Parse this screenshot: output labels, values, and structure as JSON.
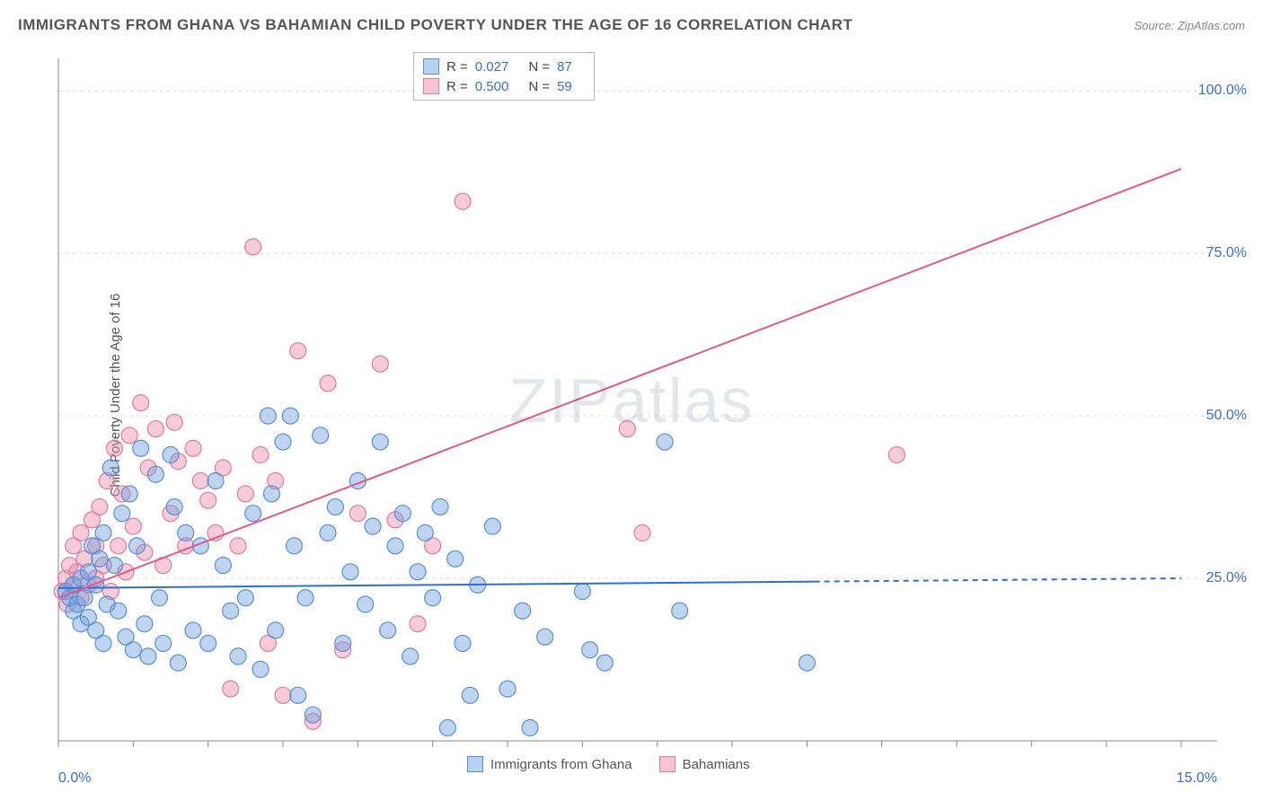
{
  "title": "IMMIGRANTS FROM GHANA VS BAHAMIAN CHILD POVERTY UNDER THE AGE OF 16 CORRELATION CHART",
  "source": "Source: ZipAtlas.com",
  "ylabel": "Child Poverty Under the Age of 16",
  "watermark": "ZIPatlas",
  "chart": {
    "type": "scatter",
    "xlim": [
      0,
      15
    ],
    "ylim": [
      0,
      105
    ],
    "xticks": [
      0,
      1,
      2,
      3,
      4,
      5,
      6,
      7,
      8,
      9,
      10,
      11,
      12,
      13,
      14,
      15
    ],
    "yticks": [
      25,
      50,
      75,
      100
    ],
    "xtick_labels": {
      "0": "0.0%",
      "15": "15.0%"
    },
    "ytick_labels": {
      "25": "25.0%",
      "50": "50.0%",
      "75": "75.0%",
      "100": "100.0%"
    },
    "grid_color": "#dddddd",
    "axis_color": "#888888",
    "background_color": "#ffffff",
    "label_color": "#3b6fc4",
    "marker_radius": 9,
    "marker_opacity": 0.55,
    "line_width": 2,
    "trend_dash_extension": true
  },
  "series": {
    "ghana": {
      "label": "Immigrants from Ghana",
      "color_fill": "rgba(110,160,225,0.45)",
      "color_stroke": "#5a8fd6",
      "swatch_fill": "#b8d1f0",
      "swatch_stroke": "#5a8fd6",
      "R": "0.027",
      "N": "87",
      "trend": {
        "x1": 0,
        "y1": 23.5,
        "x2": 10.1,
        "y2": 24.5,
        "dash_x2": 15,
        "dash_y2": 25.0,
        "stroke": "#2f6fd0"
      },
      "points": [
        [
          0.1,
          23
        ],
        [
          0.15,
          22
        ],
        [
          0.2,
          24
        ],
        [
          0.2,
          20
        ],
        [
          0.25,
          21
        ],
        [
          0.3,
          25
        ],
        [
          0.3,
          18
        ],
        [
          0.35,
          22
        ],
        [
          0.4,
          26
        ],
        [
          0.4,
          19
        ],
        [
          0.45,
          30
        ],
        [
          0.5,
          17
        ],
        [
          0.5,
          24
        ],
        [
          0.55,
          28
        ],
        [
          0.6,
          32
        ],
        [
          0.6,
          15
        ],
        [
          0.65,
          21
        ],
        [
          0.7,
          42
        ],
        [
          0.75,
          27
        ],
        [
          0.8,
          20
        ],
        [
          0.85,
          35
        ],
        [
          0.9,
          16
        ],
        [
          0.95,
          38
        ],
        [
          1.0,
          14
        ],
        [
          1.05,
          30
        ],
        [
          1.1,
          45
        ],
        [
          1.15,
          18
        ],
        [
          1.2,
          13
        ],
        [
          1.3,
          41
        ],
        [
          1.35,
          22
        ],
        [
          1.4,
          15
        ],
        [
          1.5,
          44
        ],
        [
          1.55,
          36
        ],
        [
          1.6,
          12
        ],
        [
          1.7,
          32
        ],
        [
          1.8,
          17
        ],
        [
          1.9,
          30
        ],
        [
          2.0,
          15
        ],
        [
          2.1,
          40
        ],
        [
          2.2,
          27
        ],
        [
          2.3,
          20
        ],
        [
          2.4,
          13
        ],
        [
          2.5,
          22
        ],
        [
          2.6,
          35
        ],
        [
          2.7,
          11
        ],
        [
          2.8,
          50
        ],
        [
          2.85,
          38
        ],
        [
          2.9,
          17
        ],
        [
          3.0,
          46
        ],
        [
          3.1,
          50
        ],
        [
          3.15,
          30
        ],
        [
          3.2,
          7
        ],
        [
          3.3,
          22
        ],
        [
          3.4,
          4
        ],
        [
          3.5,
          47
        ],
        [
          3.6,
          32
        ],
        [
          3.7,
          36
        ],
        [
          3.8,
          15
        ],
        [
          3.9,
          26
        ],
        [
          4.0,
          40
        ],
        [
          4.1,
          21
        ],
        [
          4.2,
          33
        ],
        [
          4.3,
          46
        ],
        [
          4.4,
          17
        ],
        [
          4.5,
          30
        ],
        [
          4.6,
          35
        ],
        [
          4.7,
          13
        ],
        [
          4.8,
          26
        ],
        [
          4.9,
          32
        ],
        [
          5.0,
          22
        ],
        [
          5.1,
          36
        ],
        [
          5.2,
          2
        ],
        [
          5.3,
          28
        ],
        [
          5.4,
          15
        ],
        [
          5.5,
          7
        ],
        [
          5.6,
          24
        ],
        [
          5.8,
          33
        ],
        [
          6.0,
          8
        ],
        [
          6.2,
          20
        ],
        [
          6.3,
          2
        ],
        [
          6.5,
          16
        ],
        [
          7.0,
          23
        ],
        [
          7.1,
          14
        ],
        [
          7.3,
          12
        ],
        [
          8.1,
          46
        ],
        [
          8.3,
          20
        ],
        [
          10.0,
          12
        ]
      ]
    },
    "bahamians": {
      "label": "Bahamians",
      "color_fill": "rgba(240,140,170,0.45)",
      "color_stroke": "#df7ba0",
      "swatch_fill": "#f4c4d4",
      "swatch_stroke": "#df7ba0",
      "R": "0.500",
      "N": "59",
      "trend": {
        "x1": 0,
        "y1": 22,
        "x2": 15,
        "y2": 88,
        "stroke": "#e05a8a"
      },
      "points": [
        [
          0.05,
          23
        ],
        [
          0.1,
          25
        ],
        [
          0.12,
          21
        ],
        [
          0.15,
          27
        ],
        [
          0.2,
          24
        ],
        [
          0.2,
          30
        ],
        [
          0.25,
          26
        ],
        [
          0.3,
          22
        ],
        [
          0.3,
          32
        ],
        [
          0.35,
          28
        ],
        [
          0.4,
          24
        ],
        [
          0.45,
          34
        ],
        [
          0.5,
          30
        ],
        [
          0.5,
          25
        ],
        [
          0.55,
          36
        ],
        [
          0.6,
          27
        ],
        [
          0.65,
          40
        ],
        [
          0.7,
          23
        ],
        [
          0.75,
          45
        ],
        [
          0.8,
          30
        ],
        [
          0.85,
          38
        ],
        [
          0.9,
          26
        ],
        [
          0.95,
          47
        ],
        [
          1.0,
          33
        ],
        [
          1.1,
          52
        ],
        [
          1.15,
          29
        ],
        [
          1.2,
          42
        ],
        [
          1.3,
          48
        ],
        [
          1.4,
          27
        ],
        [
          1.5,
          35
        ],
        [
          1.55,
          49
        ],
        [
          1.6,
          43
        ],
        [
          1.7,
          30
        ],
        [
          1.8,
          45
        ],
        [
          1.9,
          40
        ],
        [
          2.0,
          37
        ],
        [
          2.1,
          32
        ],
        [
          2.2,
          42
        ],
        [
          2.3,
          8
        ],
        [
          2.4,
          30
        ],
        [
          2.5,
          38
        ],
        [
          2.6,
          76
        ],
        [
          2.7,
          44
        ],
        [
          2.8,
          15
        ],
        [
          2.9,
          40
        ],
        [
          3.0,
          7
        ],
        [
          3.2,
          60
        ],
        [
          3.4,
          3
        ],
        [
          3.6,
          55
        ],
        [
          3.8,
          14
        ],
        [
          4.0,
          35
        ],
        [
          4.3,
          58
        ],
        [
          4.5,
          34
        ],
        [
          4.8,
          18
        ],
        [
          5.0,
          30
        ],
        [
          5.4,
          83
        ],
        [
          7.6,
          48
        ],
        [
          7.8,
          32
        ],
        [
          11.2,
          44
        ]
      ]
    }
  },
  "legend_labels": {
    "R": "R =",
    "N": "N ="
  }
}
